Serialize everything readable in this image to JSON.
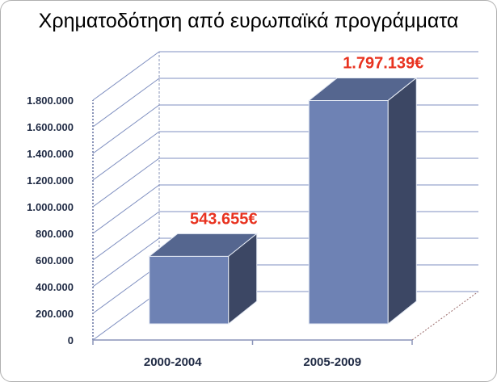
{
  "chart_data": {
    "type": "bar",
    "title": "Χρηματοδότηση από ευρωπαϊκά προγράμματα",
    "categories": [
      "2000-2004",
      "2005-2009"
    ],
    "values": [
      543655,
      1797139
    ],
    "data_labels": [
      "543.655€",
      "1.797.139€"
    ],
    "ylim": [
      0,
      1800000
    ],
    "yticks": [
      "0",
      "200.000",
      "400.000",
      "600.000",
      "800.000",
      "1.000.000",
      "1.200.000",
      "1.400.000",
      "1.600.000",
      "1.800.000"
    ],
    "xlabel": "",
    "ylabel": "",
    "grid": true,
    "style": "3d-column",
    "colors": {
      "bar_front": "#6e82b4",
      "bar_top": "#55668f",
      "bar_side": "#3c4764",
      "bar_edge": "#e6ebf5",
      "gridline": "#7f8fc0",
      "axis": "#8a94b8",
      "data_label": "#e8321f",
      "tick_label": "#1f2a44"
    }
  }
}
